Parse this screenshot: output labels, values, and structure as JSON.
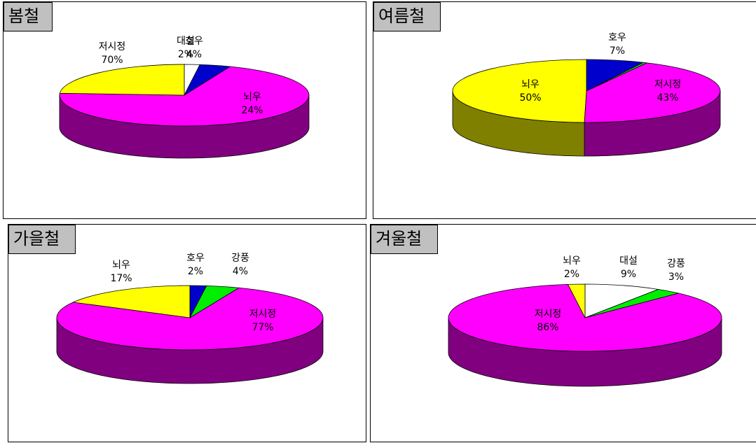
{
  "chart_data": [
    {
      "type": "pie",
      "title": "봄철",
      "slices": [
        {
          "name": "대설",
          "value": 2,
          "label": "2%",
          "color": "#ffffff"
        },
        {
          "name": "호우",
          "value": 4,
          "label": "4%",
          "color": "#0000cc"
        },
        {
          "name": "저시정",
          "value": 70,
          "label": "70%",
          "color": "#ff00ff"
        },
        {
          "name": "뇌우",
          "value": 24,
          "label": "24%",
          "color": "#ffff00"
        }
      ]
    },
    {
      "type": "pie",
      "title": "여름철",
      "slices": [
        {
          "name": "호우",
          "value": 7,
          "label": "7%",
          "color": "#0000cc"
        },
        {
          "name": "",
          "value": 0.5,
          "label": "",
          "color": "#00cc00"
        },
        {
          "name": "저시정",
          "value": 43,
          "label": "43%",
          "color": "#ff00ff"
        },
        {
          "name": "뇌우",
          "value": 50,
          "label": "50%",
          "color": "#ffff00"
        }
      ]
    },
    {
      "type": "pie",
      "title": "가을철",
      "slices": [
        {
          "name": "호우",
          "value": 2,
          "label": "2%",
          "color": "#0000cc"
        },
        {
          "name": "강풍",
          "value": 4,
          "label": "4%",
          "color": "#00ee00"
        },
        {
          "name": "저시정",
          "value": 77,
          "label": "77%",
          "color": "#ff00ff"
        },
        {
          "name": "뇌우",
          "value": 17,
          "label": "17%",
          "color": "#ffff00"
        }
      ]
    },
    {
      "type": "pie",
      "title": "겨울철",
      "slices": [
        {
          "name": "대설",
          "value": 9,
          "label": "9%",
          "color": "#ffffff"
        },
        {
          "name": "강풍",
          "value": 3,
          "label": "3%",
          "color": "#00ee00"
        },
        {
          "name": "저시정",
          "value": 86,
          "label": "86%",
          "color": "#ff00ff"
        },
        {
          "name": "뇌우",
          "value": 2,
          "label": "2%",
          "color": "#ffff00"
        }
      ]
    }
  ]
}
